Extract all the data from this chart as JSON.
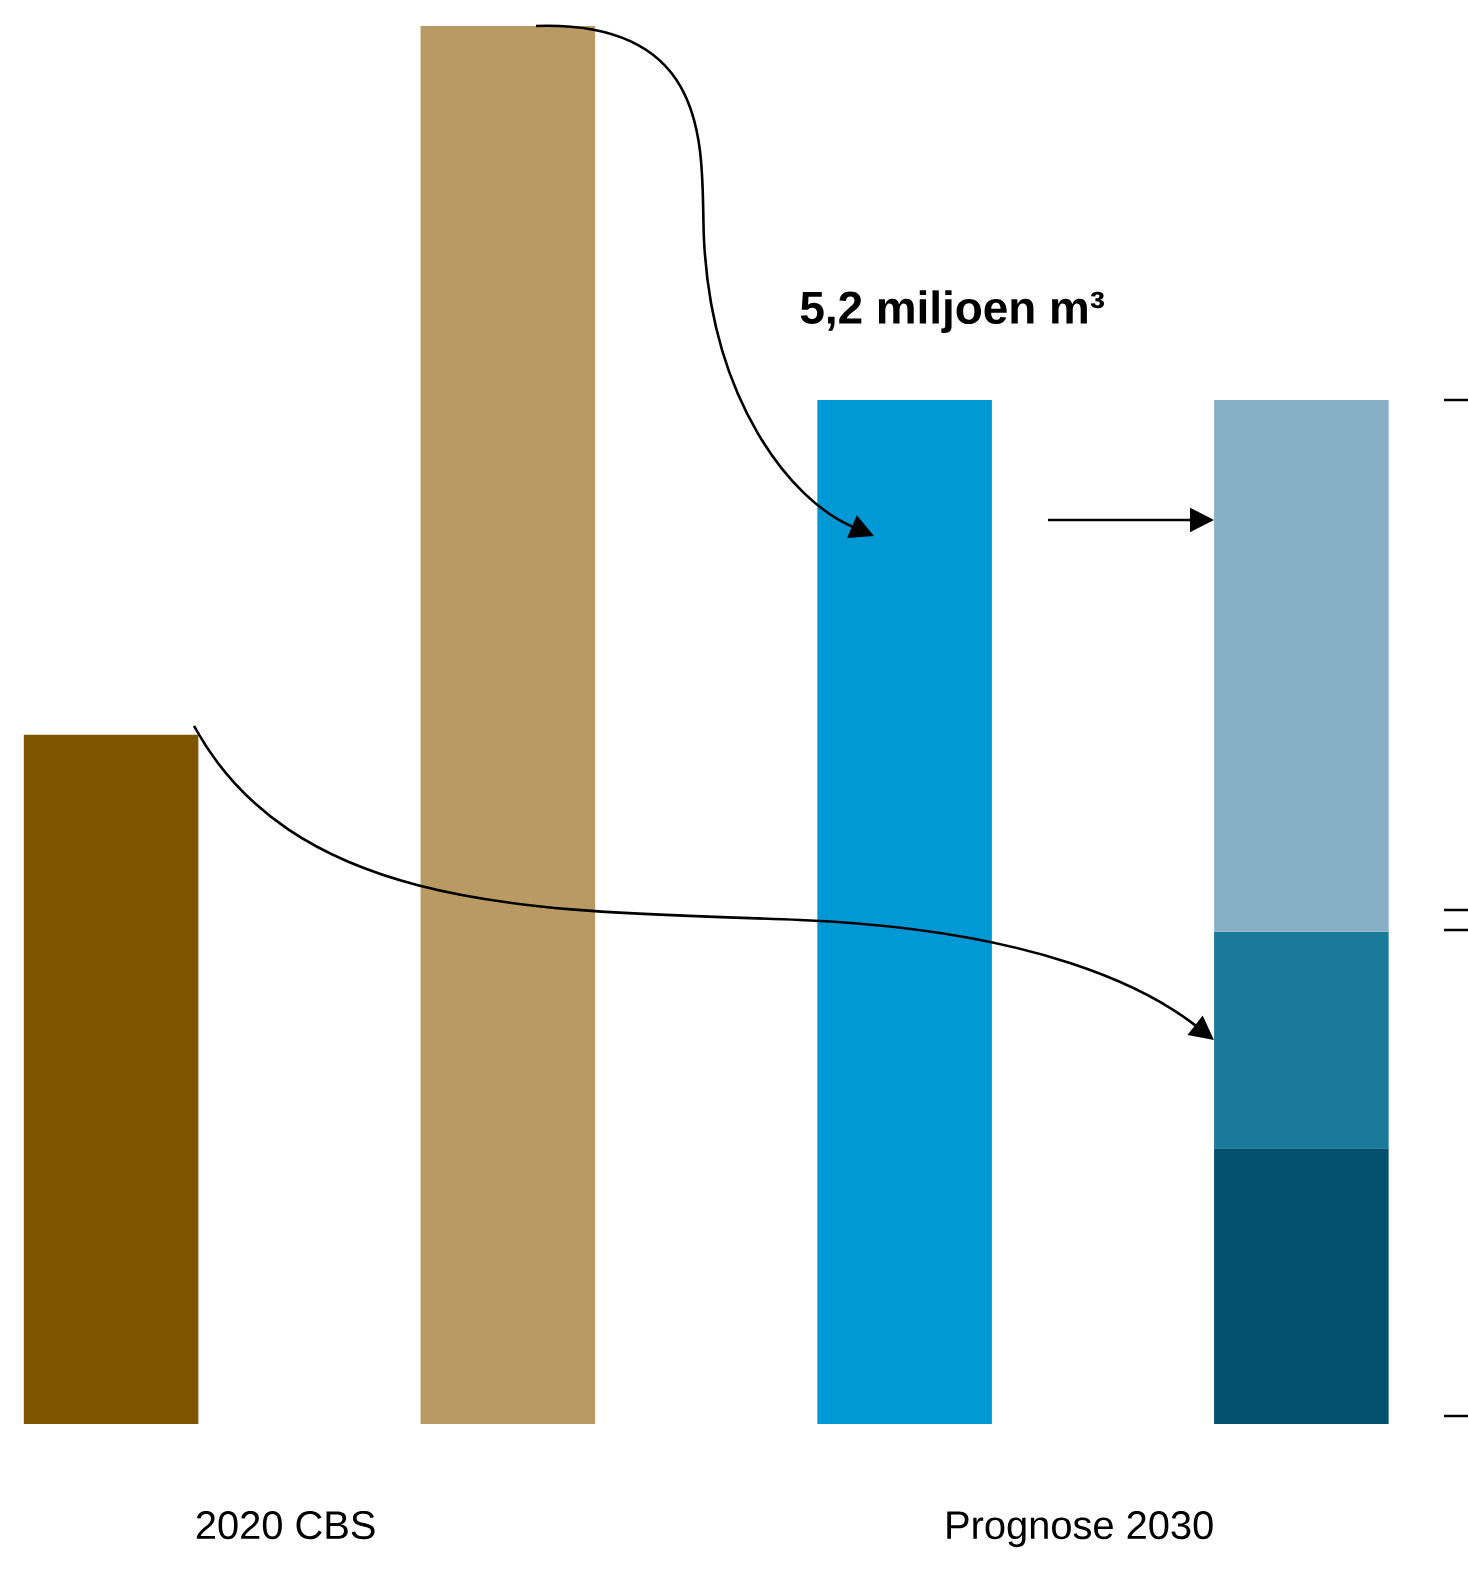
{
  "chart_data": {
    "type": "bar",
    "stacked": true,
    "categories": [
      null,
      null,
      null,
      null
    ],
    "series": [
      {
        "colors": [
          "#7f5600",
          "#b89a62",
          "#0099d6",
          "#03506f"
        ],
        "values": [
          3.5,
          7.1,
          5.2,
          1.4
        ],
        "value_labels": [
          null,
          null,
          "5,2 miljoen m³",
          null
        ]
      },
      {
        "color": "#1a7a9a",
        "values": [
          null,
          null,
          null,
          1.1
        ]
      },
      {
        "color": "#87afc5",
        "values": [
          null,
          null,
          null,
          2.7
        ]
      }
    ],
    "annotations": [
      "2020 CBS",
      "Prognose 2030"
    ]
  }
}
